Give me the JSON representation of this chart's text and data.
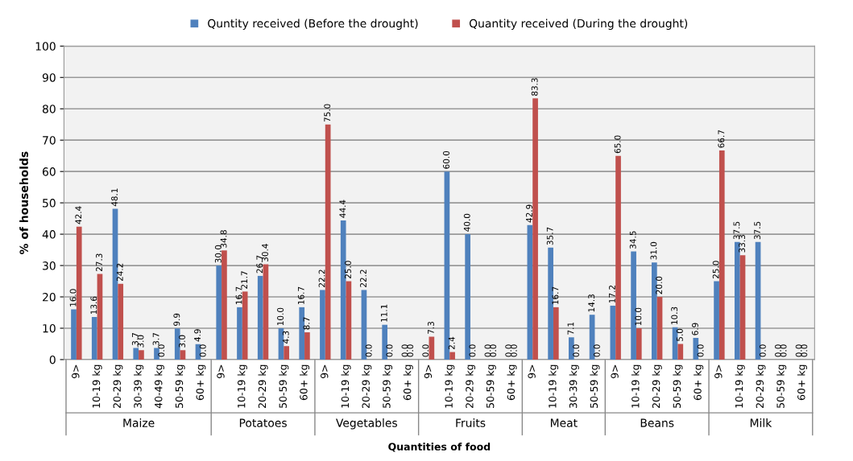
{
  "chart_data": {
    "type": "bar",
    "xlabel": "Quantities of food",
    "ylabel": "% of households",
    "categories": [
      "9>",
      "10-19 kg",
      "20-29 kg",
      "30-39 kg",
      "40-49 kg",
      "50-59 kg",
      "60+ kg",
      "9>",
      "10-19 kg",
      "20-29 kg",
      "50-59 kg",
      "60+ kg",
      "9>",
      "10-19 kg",
      "20-29 kg",
      "50-59 kg",
      "60+ kg",
      "9>",
      "10-19 kg",
      "20-29 kg",
      "50-59 kg",
      "60+ kg",
      "9>",
      "10-19 kg",
      "30-39 kg",
      "50-59 kg",
      "9>",
      "10-19 kg",
      "20-29 kg",
      "50-59 kg",
      "60+ kg",
      "9>",
      "10-19 kg",
      "20-29 kg",
      "50-59 kg",
      "60+ kg"
    ],
    "annotations": [
      "Maize",
      "Potatoes",
      "Vegetables",
      "Fruits",
      "Meat",
      "Beans",
      "Milk"
    ],
    "series": [
      {
        "name": "Quntity received (Before the drought)",
        "color": "#4f81bd",
        "values": [
          16.0,
          13.6,
          48.1,
          3.7,
          3.7,
          9.9,
          4.9,
          30.0,
          16.7,
          26.7,
          10.0,
          16.7,
          22.2,
          44.4,
          22.2,
          11.1,
          0.0,
          0.0,
          60.0,
          40.0,
          0.0,
          0.0,
          42.9,
          35.7,
          7.1,
          14.3,
          17.2,
          34.5,
          31.0,
          10.3,
          6.9,
          25.0,
          37.5,
          37.5,
          0.0,
          0.0
        ],
        "value_labels": [
          "16.0",
          "13.6",
          "48.1",
          "3.7",
          "3.7",
          "9.9",
          "4.9",
          "30.0",
          "16.7",
          "26.7",
          "10.0",
          "16.7",
          "22.2",
          "44.4",
          "22.2",
          "11.1",
          "0.0",
          "0.0",
          "60.0",
          "40.0",
          "0.0",
          "0.0",
          "42.9",
          "35.7",
          "7.1",
          "14.3",
          "17.2",
          "34.5",
          "31.0",
          "10.3",
          "6.9",
          "25.0",
          "37.5",
          "37.5",
          "0.0",
          "0.0"
        ]
      },
      {
        "name": "Quantity received (During the drought)",
        "color": "#c0504d",
        "values": [
          42.4,
          27.3,
          24.2,
          3.0,
          0.0,
          3.0,
          0.0,
          34.8,
          21.7,
          30.4,
          4.3,
          8.7,
          75.0,
          25.0,
          0.0,
          0.0,
          0.0,
          7.3,
          2.4,
          0.0,
          0.0,
          0.0,
          83.3,
          16.7,
          0.0,
          0.0,
          65.0,
          10.0,
          20.0,
          5.0,
          0.0,
          66.7,
          33.3,
          0.0,
          0.0,
          0.0
        ],
        "value_labels": [
          "42.4",
          "27.3",
          "24.2",
          "3.0",
          "0.0",
          "3.0",
          "0.0",
          "34.8",
          "21.7",
          "30.4",
          "4.3",
          "8.7",
          "75.0",
          "25.0",
          "0.0",
          "0.0",
          "0.0",
          "7.3",
          "2.4",
          "0.0",
          "0.0",
          "0.0",
          "83.3",
          "16.7",
          "0.0",
          "0.0",
          "65.0",
          "10.0",
          "20.0",
          "5.0",
          "0.0",
          "66.7",
          "33.3",
          "0.0",
          "0.0",
          "0.0"
        ]
      }
    ],
    "ylim": [
      0,
      100
    ],
    "yticks": [
      0,
      10,
      20,
      30,
      40,
      50,
      60,
      70,
      80,
      90,
      100
    ],
    "grid": "y",
    "legend": "top"
  }
}
